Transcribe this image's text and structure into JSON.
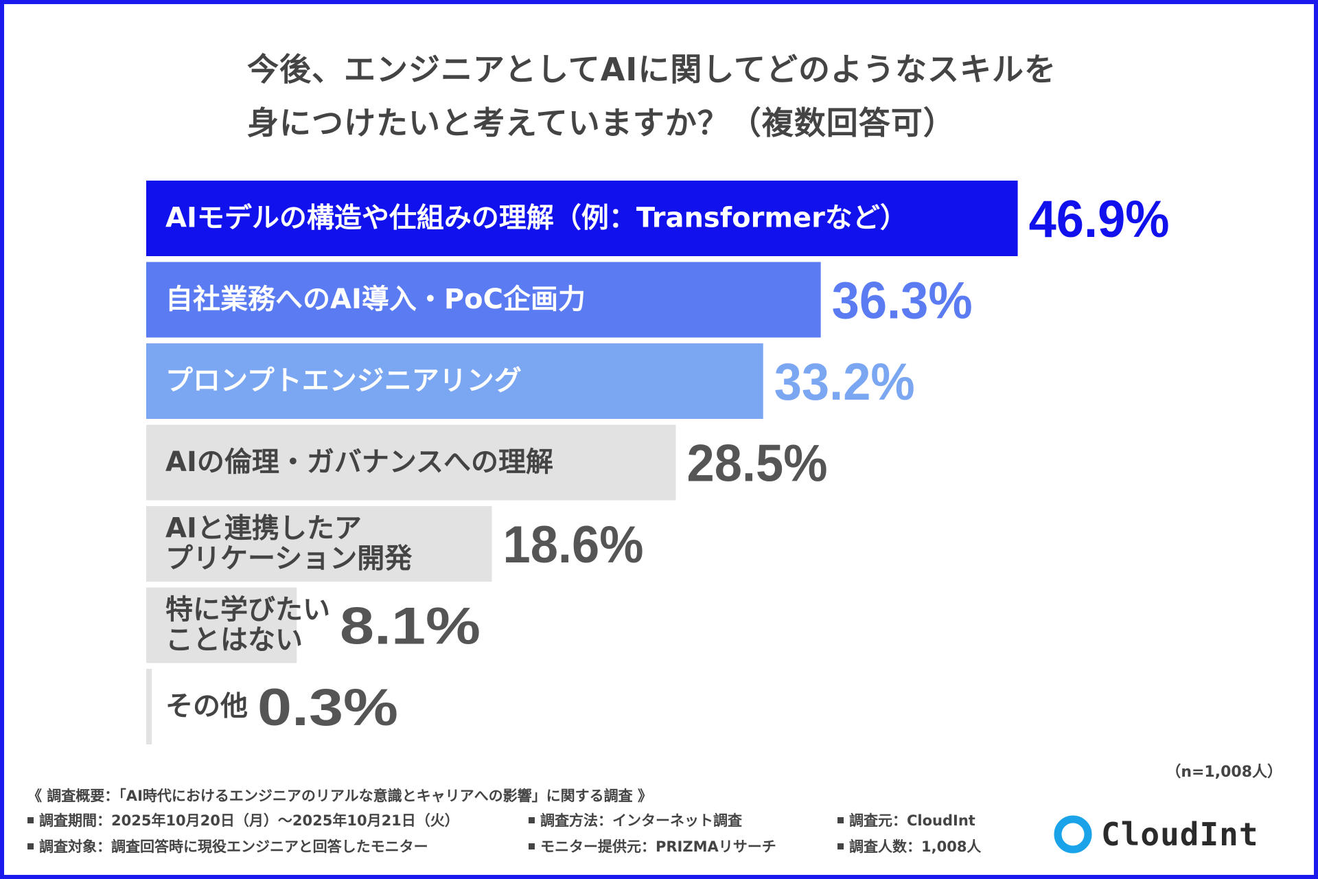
{
  "title": {
    "line1": "今後、エンジニアとしてAIに関してどのようなスキルを",
    "line2": "身につけたいと考えていますか？（複数回答可）"
  },
  "chart_data": {
    "type": "bar",
    "orientation": "horizontal",
    "categories": [
      [
        "AIモデルの構造や仕組みの理解（例：Transformerなど）"
      ],
      [
        "自社業務へのAI導入・PoC企画力"
      ],
      [
        "プロンプトエンジニアリング"
      ],
      [
        "AIの倫理・ガバナンスへの理解"
      ],
      [
        "AIと連携したア",
        "プリケーション開発"
      ],
      [
        "特に学びたい",
        "ことはない"
      ],
      [
        "その他"
      ]
    ],
    "values": [
      46.9,
      36.3,
      33.2,
      28.5,
      18.6,
      8.1,
      0.3
    ],
    "value_labels": [
      "46.9%",
      "36.3%",
      "33.2%",
      "28.5%",
      "18.6%",
      "8.1%",
      "0.3%"
    ],
    "colors": {
      "bars": [
        "#1111ee",
        "#5b7bf2",
        "#7aa6f2",
        "#e2e2e2",
        "#e2e2e2",
        "#e2e2e2",
        "#e2e2e2"
      ],
      "values": [
        "#1111ee",
        "#5b7bf2",
        "#7aa6f2",
        "#555555",
        "#555555",
        "#555555",
        "#555555"
      ],
      "bar_text": [
        "#ffffff",
        "#ffffff",
        "#ffffff",
        "#444444",
        "#444444",
        "#444444",
        "#444444"
      ]
    },
    "xlim": [
      0,
      100
    ],
    "grid": false,
    "legend": "none"
  },
  "note": "（n=1,008人）",
  "survey": {
    "heading": "《 調査概要：「AI時代におけるエンジニアのリアルな意識とキャリアへの影響」に関する調査 》",
    "items": [
      "調査期間：2025年10月20日（月）～2025年10月21日（火）",
      "調査方法：インターネット調査",
      "調査元：CloudInt",
      "調査対象：調査回答時に現役エンジニアと回答したモニター",
      "モニター提供元：PRIZMAリサーチ",
      "調査人数：1,008人"
    ]
  },
  "logo": {
    "text": "CloudInt",
    "colors": [
      "#1aa3e8",
      "#1650c8"
    ]
  }
}
